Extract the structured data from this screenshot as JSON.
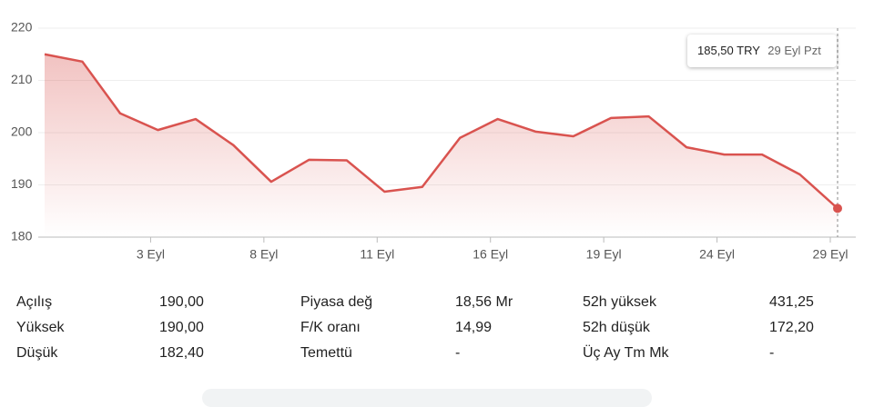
{
  "chart_data": {
    "type": "line",
    "categories": [
      null,
      null,
      null,
      "3 Eyl",
      null,
      null,
      "8 Eyl",
      null,
      null,
      "11 Eyl",
      null,
      null,
      "16 Eyl",
      null,
      null,
      "19 Eyl",
      null,
      null,
      "24 Eyl",
      null,
      null,
      "29 Eyl"
    ],
    "values": [
      215.0,
      213.6,
      203.7,
      200.5,
      202.6,
      197.6,
      190.6,
      194.8,
      194.7,
      188.7,
      189.6,
      199.0,
      202.6,
      200.2,
      199.3,
      202.8,
      203.1,
      197.2,
      195.8,
      195.8,
      192.0,
      185.5
    ],
    "color": "#d9534f",
    "ylim": [
      180,
      220
    ],
    "yticks": [
      180,
      190,
      200,
      210,
      220
    ],
    "grid": true,
    "tooltip": {
      "price": "185,50 TRY",
      "date": "29 Eyl Pzt"
    }
  },
  "stats": [
    [
      [
        "Açılış",
        "190,00"
      ],
      [
        "Yüksek",
        "190,00"
      ],
      [
        "Düşük",
        "182,40"
      ]
    ],
    [
      [
        "Piyasa değ",
        "18,56 Mr"
      ],
      [
        "F/K oranı",
        "14,99"
      ],
      [
        "Temettü",
        "-"
      ]
    ],
    [
      [
        "52h yüksek",
        "431,25"
      ],
      [
        "52h düşük",
        "172,20"
      ],
      [
        "Üç Ay Tm Mk",
        "-"
      ]
    ]
  ]
}
